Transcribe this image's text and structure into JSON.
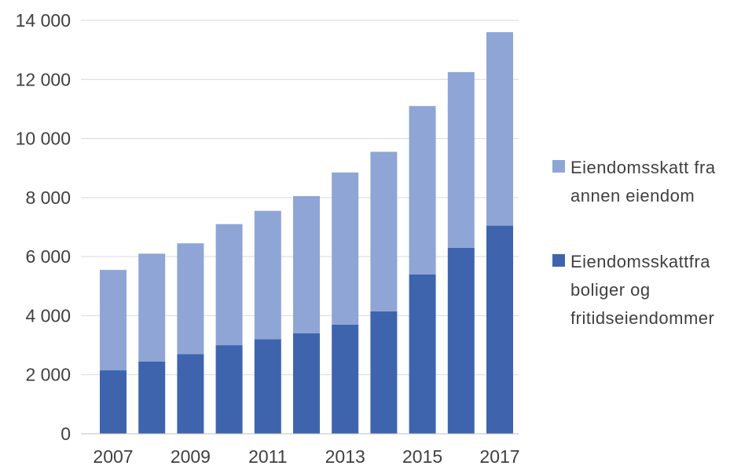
{
  "chart_data": {
    "type": "bar",
    "stacked": true,
    "categories": [
      "2007",
      "2008",
      "2009",
      "2010",
      "2011",
      "2012",
      "2013",
      "2014",
      "2015",
      "2016",
      "2017"
    ],
    "x_tick_labels": [
      "2007",
      "2009",
      "2011",
      "2013",
      "2015",
      "2017"
    ],
    "y_tick_labels": [
      "0",
      "2 000",
      "4 000",
      "6 000",
      "8 000",
      "10 000",
      "12 000",
      "14 000"
    ],
    "y_ticks": [
      0,
      2000,
      4000,
      6000,
      8000,
      10000,
      12000,
      14000
    ],
    "ylim": [
      0,
      14000
    ],
    "grid": true,
    "legend_position": "right",
    "title": "",
    "xlabel": "",
    "ylabel": "",
    "series": [
      {
        "name": "Eiendomsskattfra boliger og fritidseiendommer",
        "legend_lines": [
          "Eiendomsskattfra",
          "boliger og",
          "fritidseiendommer"
        ],
        "color": "#3e64ad",
        "values": [
          2150,
          2450,
          2700,
          3000,
          3200,
          3400,
          3700,
          4150,
          5400,
          6300,
          7050
        ]
      },
      {
        "name": "Eiendomsskatt fra annen eiendom",
        "legend_lines": [
          "Eiendomsskatt fra",
          "annen eiendom"
        ],
        "color": "#8fa5d6",
        "values": [
          3400,
          3650,
          3750,
          4100,
          4350,
          4650,
          5150,
          5400,
          5700,
          5950,
          6550
        ]
      }
    ]
  }
}
